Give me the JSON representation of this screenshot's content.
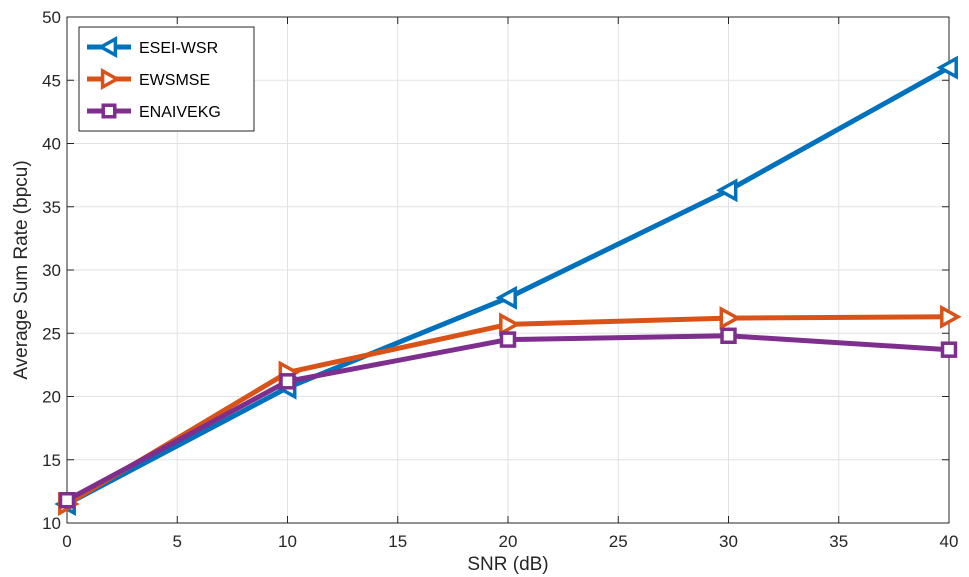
{
  "chart_data": {
    "type": "line",
    "xlabel": "SNR (dB)",
    "ylabel": "Average Sum Rate (bpcu)",
    "xlim": [
      0,
      40
    ],
    "ylim": [
      10,
      50
    ],
    "xticks": [
      "0",
      "5",
      "10",
      "15",
      "20",
      "25",
      "30",
      "35",
      "40"
    ],
    "yticks": [
      "10",
      "15",
      "20",
      "25",
      "30",
      "35",
      "40",
      "45",
      "50"
    ],
    "grid": true,
    "legend_position": "top-left",
    "x": [
      0,
      10,
      20,
      30,
      40
    ],
    "series": [
      {
        "name": "ESEI-WSR",
        "values": [
          11.5,
          20.7,
          27.8,
          36.3,
          46.0
        ],
        "color": "#0072BD",
        "marker": "triangle-left"
      },
      {
        "name": "EWSMSE",
        "values": [
          11.5,
          21.9,
          25.7,
          26.2,
          26.3
        ],
        "color": "#D95319",
        "marker": "triangle-right"
      },
      {
        "name": "ENAIVEKG",
        "values": [
          11.8,
          21.2,
          24.5,
          24.8,
          23.7
        ],
        "color": "#7E2F8E",
        "marker": "square"
      }
    ]
  }
}
